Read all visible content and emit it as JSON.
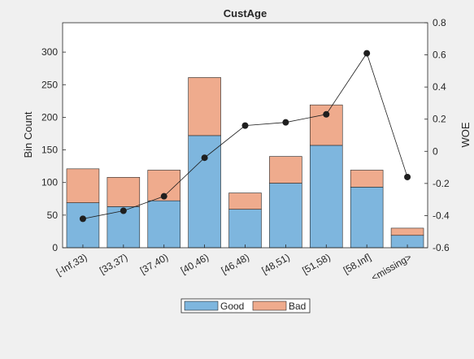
{
  "chart_data": {
    "type": "bar",
    "title": "CustAge",
    "xlabel": "",
    "ylabel": "Bin Count",
    "y2label": "WOE",
    "categories": [
      "[-Inf,33)",
      "[33,37)",
      "[37,40)",
      "[40,46)",
      "[46,48)",
      "[48,51)",
      "[51,58)",
      "[58,Inf]",
      "<missing>"
    ],
    "stacked": true,
    "series": [
      {
        "name": "Good",
        "values": [
          69,
          63,
          72,
          172,
          59,
          99,
          157,
          93,
          19
        ],
        "color": "#7eb6de"
      },
      {
        "name": "Bad",
        "values": [
          52,
          45,
          47,
          89,
          25,
          41,
          62,
          26,
          11
        ],
        "color": "#efab8d"
      }
    ],
    "woe_line": {
      "values": [
        -0.42,
        -0.37,
        -0.28,
        -0.04,
        0.16,
        0.18,
        0.23,
        0.61,
        -0.16
      ],
      "color": "#1f1f1f"
    },
    "ylim": [
      0,
      345
    ],
    "yticks": [
      0,
      50,
      100,
      150,
      200,
      250,
      300
    ],
    "y2lim": [
      -0.6,
      0.8
    ],
    "y2ticks": [
      -0.6,
      -0.4,
      -0.2,
      0,
      0.2,
      0.4,
      0.6,
      0.8
    ],
    "y2ticklabels": [
      "-0.6",
      "-0.4",
      "-0.2",
      "0",
      "0.2",
      "0.4",
      "0.6",
      "0.8"
    ],
    "grid": false,
    "legend": {
      "position": "bottom-center",
      "entries": [
        "Good",
        "Bad"
      ]
    }
  }
}
